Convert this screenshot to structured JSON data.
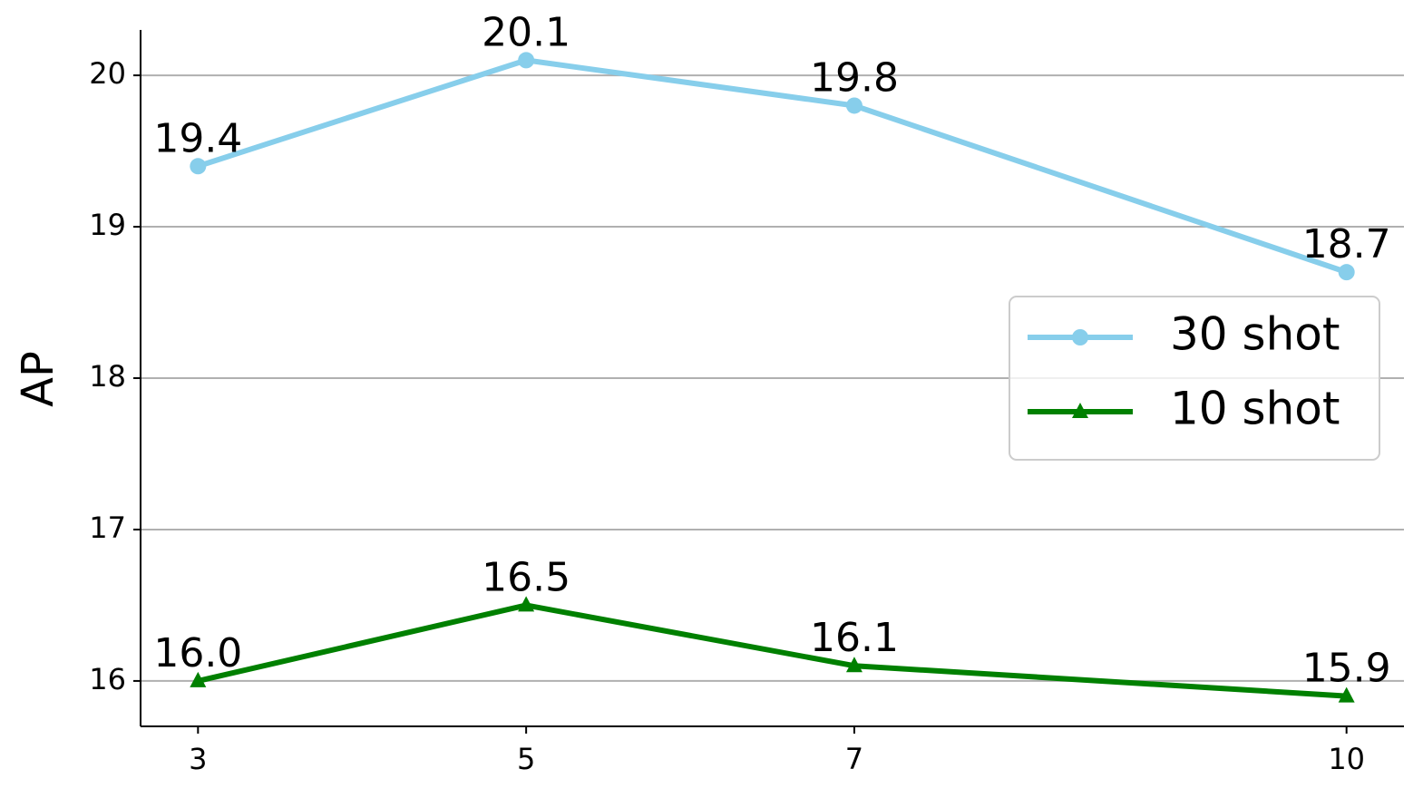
{
  "chart_data": {
    "type": "line",
    "ylabel": "AP",
    "x": [
      3,
      5,
      7,
      10
    ],
    "series": [
      {
        "name": "30 shot",
        "color": "#87ceeb",
        "marker": "circle",
        "values": [
          19.4,
          20.1,
          19.8,
          18.7
        ],
        "value_labels": [
          "19.4",
          "20.1",
          "19.8",
          "18.7"
        ]
      },
      {
        "name": "10 shot",
        "color": "#008000",
        "marker": "triangle",
        "values": [
          16.0,
          16.5,
          16.1,
          15.9
        ],
        "value_labels": [
          "16.0",
          "16.5",
          "16.1",
          "15.9"
        ]
      }
    ],
    "xlim": [
      2.65,
      10.35
    ],
    "xticks": [
      3,
      5,
      7,
      10
    ],
    "ylim": [
      15.7,
      20.3
    ],
    "yticks": [
      16,
      17,
      18,
      19,
      20
    ],
    "grid": true,
    "legend": "right"
  }
}
